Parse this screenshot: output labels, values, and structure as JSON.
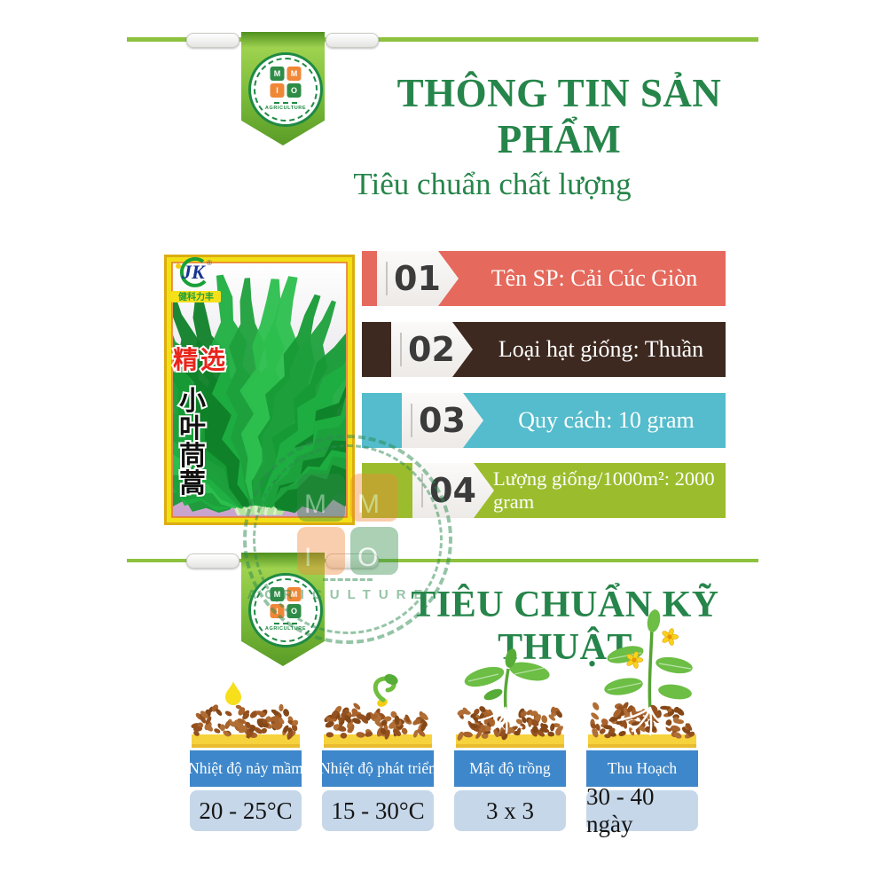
{
  "header": {
    "title": "THÔNG TIN SẢN PHẨM",
    "subtitle": "Tiêu chuẩn chất lượng"
  },
  "logo": {
    "letters": [
      "M",
      "M",
      "I",
      "O"
    ],
    "caption": "AGRICULTURE"
  },
  "packet": {
    "brand": "JK",
    "reg": "®",
    "brand_sub": "健科力丰",
    "label_select": "精选",
    "name_chars": [
      "小",
      "叶",
      "茼",
      "蒿"
    ]
  },
  "quality_banners": [
    {
      "number": "01",
      "text": "Tên SP: Cải Cúc Giòn",
      "color": "#E5695C"
    },
    {
      "number": "02",
      "text": "Loại hạt giống: Thuần",
      "color": "#3E2920"
    },
    {
      "number": "03",
      "text": "Quy cách: 10 gram",
      "color": "#54BCCC"
    },
    {
      "number": "04",
      "text": "Lượng giống/1000m²: 2000 gram",
      "color": "#9BBD2D"
    }
  ],
  "tech": {
    "title": "TIÊU CHUẨN KỸ THUẬT",
    "stages": [
      {
        "label": "Nhiệt độ nảy mầm",
        "value": "20 - 25°C"
      },
      {
        "label": "Nhiệt độ phát triển",
        "value": "15 - 30°C"
      },
      {
        "label": "Mật độ trồng",
        "value": "3 x 3"
      },
      {
        "label": "Thu Hoạch",
        "value": "30 - 40 ngày"
      }
    ]
  },
  "colors": {
    "accent_green": "#26854A",
    "line_green": "#8CC23E",
    "stage_label_blue": "#3E87CA",
    "stage_value_blue": "#C6D7E9"
  }
}
